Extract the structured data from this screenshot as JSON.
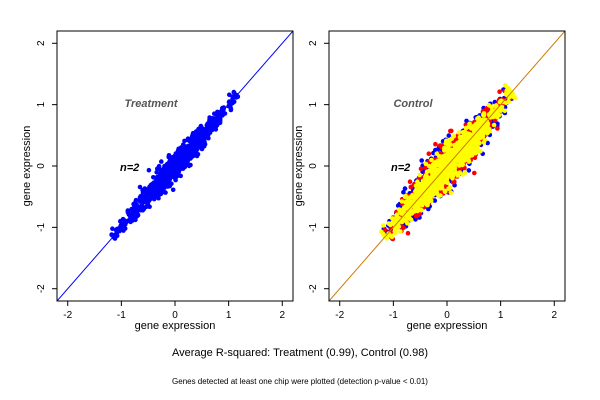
{
  "chart_data": [
    {
      "type": "scatter",
      "panel_label": "Treatment",
      "annotation": "n=2",
      "xlabel": "gene expression",
      "ylabel": "gene expression",
      "xlim": [
        -2.2,
        2.2
      ],
      "ylim": [
        -2.2,
        2.2
      ],
      "xticks": [
        "-2",
        "-1",
        "0",
        "1",
        "2"
      ],
      "yticks": [
        "-2",
        "-1",
        "0",
        "1",
        "2"
      ],
      "reference_line": {
        "slope": 1,
        "intercept": 0,
        "color": "#0000ff"
      },
      "series": [
        {
          "color": "#0000ff",
          "cloud": {
            "x_range": [
              -1.15,
              1.15
            ],
            "spread": 0.12
          }
        }
      ],
      "grid": false
    },
    {
      "type": "scatter",
      "panel_label": "Control",
      "annotation": "n=2",
      "xlabel": "gene expression",
      "ylabel": "gene expression",
      "xlim": [
        -2.2,
        2.2
      ],
      "ylim": [
        -2.2,
        2.2
      ],
      "xticks": [
        "-2",
        "-1",
        "0",
        "1",
        "2"
      ],
      "yticks": [
        "-2",
        "-1",
        "0",
        "1",
        "2"
      ],
      "reference_line": {
        "slope": 1,
        "intercept": 0,
        "color": "#cc7a00"
      },
      "series": [
        {
          "color": "#0000ff",
          "cloud": {
            "x_range": [
              -1.1,
              1.15
            ],
            "spread": 0.2
          }
        },
        {
          "color": "#ff0000",
          "cloud": {
            "x_range": [
              -1.1,
              1.15
            ],
            "spread": 0.19
          }
        },
        {
          "color": "#ffff00",
          "cloud": {
            "x_range": [
              -1.15,
              1.2
            ],
            "spread": 0.17
          }
        }
      ],
      "grid": false
    }
  ],
  "footer": {
    "summary": "Average R-squared: Treatment (0.99), Control (0.98)",
    "note": "Genes detected at least one chip were plotted (detection p-value < 0.01)"
  }
}
